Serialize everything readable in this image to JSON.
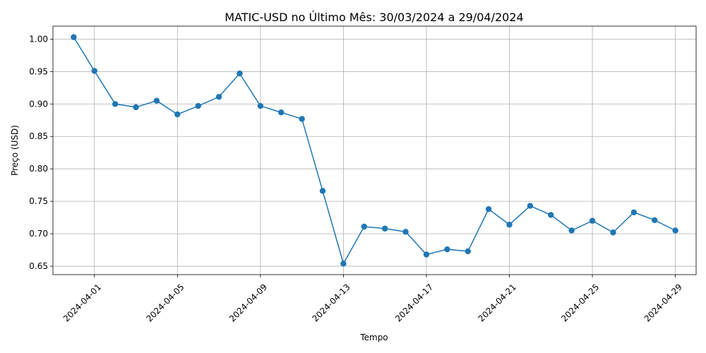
{
  "chart_data": {
    "type": "line",
    "title": "MATIC-USD no Último Mês: 30/03/2024 a 29/04/2024",
    "xlabel": "Tempo",
    "ylabel": "Preço (USD)",
    "x": [
      "2024-03-31",
      "2024-04-01",
      "2024-04-02",
      "2024-04-03",
      "2024-04-04",
      "2024-04-05",
      "2024-04-06",
      "2024-04-07",
      "2024-04-08",
      "2024-04-09",
      "2024-04-10",
      "2024-04-11",
      "2024-04-12",
      "2024-04-13",
      "2024-04-14",
      "2024-04-15",
      "2024-04-16",
      "2024-04-17",
      "2024-04-18",
      "2024-04-19",
      "2024-04-20",
      "2024-04-21",
      "2024-04-22",
      "2024-04-23",
      "2024-04-24",
      "2024-04-25",
      "2024-04-26",
      "2024-04-27",
      "2024-04-28",
      "2024-04-29"
    ],
    "series": [
      {
        "values": [
          1.003,
          0.951,
          0.9,
          0.895,
          0.905,
          0.884,
          0.897,
          0.911,
          0.947,
          0.897,
          0.887,
          0.877,
          0.766,
          0.654,
          0.711,
          0.708,
          0.703,
          0.668,
          0.676,
          0.673,
          0.738,
          0.714,
          0.743,
          0.729,
          0.705,
          0.72,
          0.702,
          0.733,
          0.721,
          0.705
        ],
        "color": "#1f77b4",
        "marker": "circle"
      }
    ],
    "xlim": [
      "2024-03-30",
      "2024-04-30"
    ],
    "ylim": [
      0.637,
      1.02
    ],
    "x_ticks": [
      "2024-04-01",
      "2024-04-05",
      "2024-04-09",
      "2024-04-13",
      "2024-04-17",
      "2024-04-21",
      "2024-04-25",
      "2024-04-29"
    ],
    "y_ticks": [
      "0.65",
      "0.70",
      "0.75",
      "0.80",
      "0.85",
      "0.90",
      "0.95",
      "1.00"
    ],
    "grid": true,
    "legend": "none"
  }
}
